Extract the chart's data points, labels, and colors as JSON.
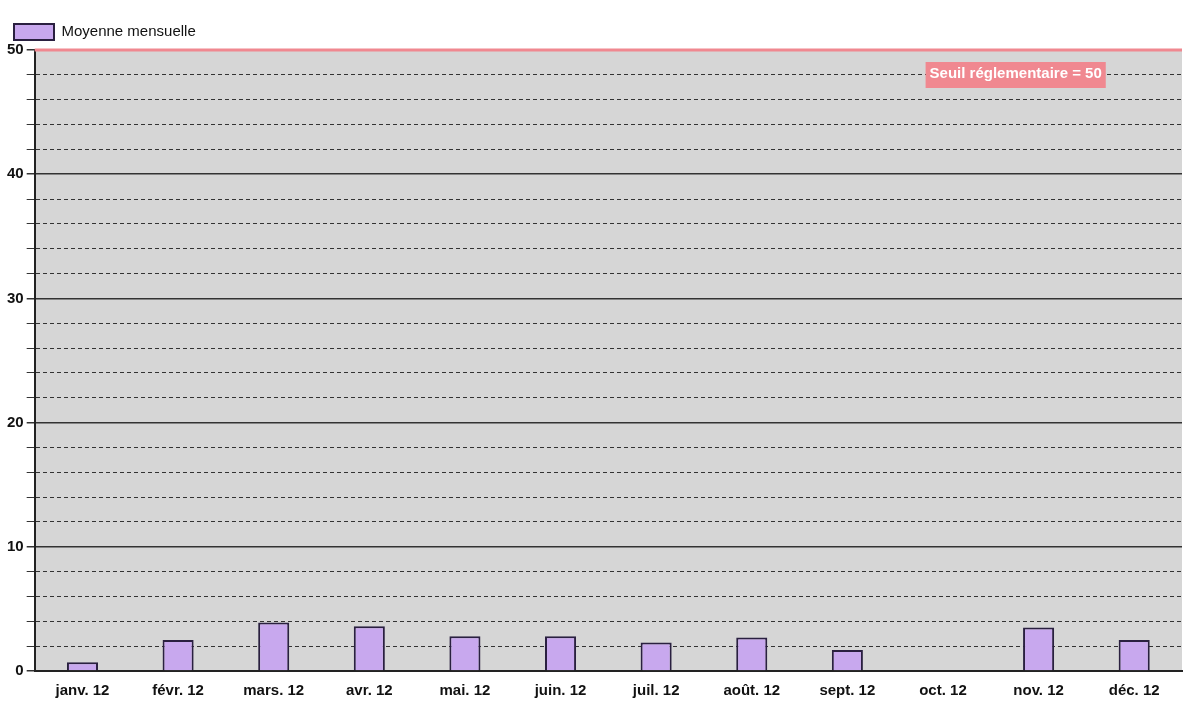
{
  "chart_data": {
    "type": "bar",
    "categories": [
      "janv. 12",
      "févr. 12",
      "mars. 12",
      "avr. 12",
      "mai. 12",
      "juin. 12",
      "juil. 12",
      "août. 12",
      "sept. 12",
      "oct. 12",
      "nov. 12",
      "déc. 12"
    ],
    "series": [
      {
        "name": "Moyenne mensuelle",
        "color": "#c8a8ee",
        "values": [
          0.7,
          2.5,
          3.9,
          3.6,
          2.8,
          2.8,
          2.3,
          2.7,
          1.7,
          null,
          3.5,
          2.5
        ]
      }
    ],
    "ylim": [
      0,
      50
    ],
    "yticks": [
      0,
      {
        "value": 2,
        "label": null
      },
      {
        "value": 4,
        "label": null
      },
      {
        "value": 6,
        "label": null
      },
      {
        "value": 8,
        "label": null
      },
      10,
      {
        "value": 12,
        "label": null
      },
      {
        "value": 14,
        "label": null
      },
      {
        "value": 16,
        "label": null
      },
      {
        "value": 18,
        "label": null
      },
      20,
      {
        "value": 22,
        "label": null
      },
      {
        "value": 24,
        "label": null
      },
      {
        "value": 26,
        "label": null
      },
      {
        "value": 28,
        "label": null
      },
      30,
      {
        "value": 32,
        "label": null
      },
      {
        "value": 34,
        "label": null
      },
      {
        "value": 36,
        "label": null
      },
      {
        "value": 38,
        "label": null
      },
      40,
      {
        "value": 42,
        "label": null
      },
      {
        "value": 44,
        "label": null
      },
      {
        "value": 46,
        "label": null
      },
      {
        "value": 48,
        "label": null
      },
      50
    ],
    "ref_lines": [
      {
        "axis": "y",
        "value": 50,
        "label": "Seuil réglementaire = 50",
        "color": "#f08890"
      }
    ],
    "grid": "y",
    "legend": "top left"
  }
}
